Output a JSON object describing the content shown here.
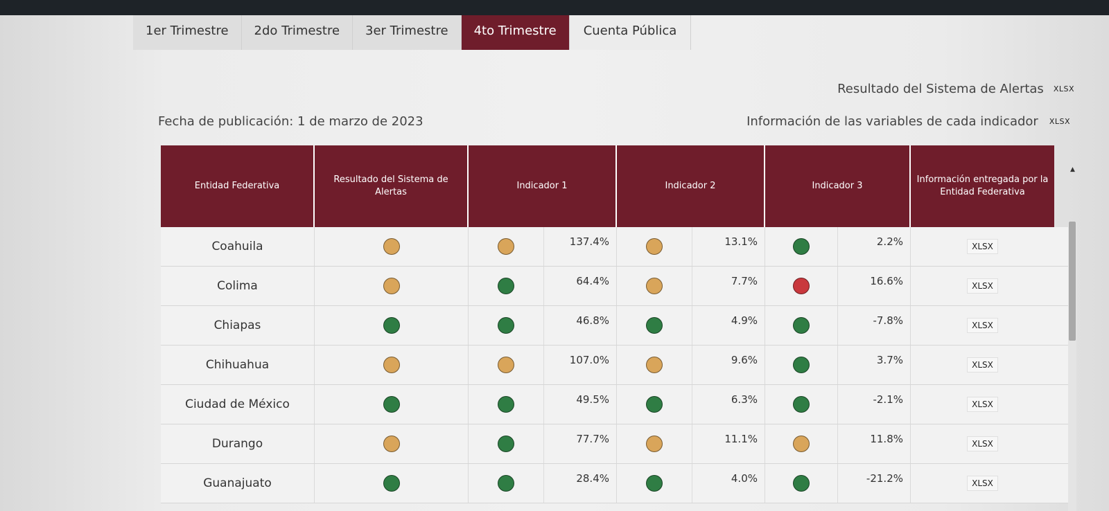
{
  "tabs": [
    {
      "label": "1er Trimestre",
      "active": false
    },
    {
      "label": "2do Trimestre",
      "active": false
    },
    {
      "label": "3er Trimestre",
      "active": false
    },
    {
      "label": "4to Trimestre",
      "active": true
    },
    {
      "label": "Cuenta Pública",
      "active": false
    }
  ],
  "links": {
    "alertas_label": "Resultado del Sistema de Alertas",
    "alertas_format": "XLSX",
    "variables_label": "Información de las variables de cada indicador",
    "variables_format": "XLSX"
  },
  "fecha": "Fecha de publicación: 1 de marzo de 2023",
  "table": {
    "headers": {
      "entidad": "Entidad Federativa",
      "resultado": "Resultado del Sistema de Alertas",
      "ind1": "Indicador 1",
      "ind2": "Indicador 2",
      "ind3": "Indicador 3",
      "info": "Información entregada por la Entidad Federativa"
    },
    "status_colors": {
      "amarillo": "#d9a55a",
      "verde": "#2f7d44",
      "rojo": "#c9383d"
    },
    "rows": [
      {
        "entidad": "Coahuila",
        "resultado": "amarillo",
        "i1": "amarillo",
        "v1": "137.4%",
        "i2": "amarillo",
        "v2": "13.1%",
        "i3": "verde",
        "v3": "2.2%",
        "info": "XLSX"
      },
      {
        "entidad": "Colima",
        "resultado": "amarillo",
        "i1": "verde",
        "v1": "64.4%",
        "i2": "amarillo",
        "v2": "7.7%",
        "i3": "rojo",
        "v3": "16.6%",
        "info": "XLSX"
      },
      {
        "entidad": "Chiapas",
        "resultado": "verde",
        "i1": "verde",
        "v1": "46.8%",
        "i2": "verde",
        "v2": "4.9%",
        "i3": "verde",
        "v3": "-7.8%",
        "info": "XLSX"
      },
      {
        "entidad": "Chihuahua",
        "resultado": "amarillo",
        "i1": "amarillo",
        "v1": "107.0%",
        "i2": "amarillo",
        "v2": "9.6%",
        "i3": "verde",
        "v3": "3.7%",
        "info": "XLSX"
      },
      {
        "entidad": "Ciudad de México",
        "resultado": "verde",
        "i1": "verde",
        "v1": "49.5%",
        "i2": "verde",
        "v2": "6.3%",
        "i3": "verde",
        "v3": "-2.1%",
        "info": "XLSX"
      },
      {
        "entidad": "Durango",
        "resultado": "amarillo",
        "i1": "verde",
        "v1": "77.7%",
        "i2": "amarillo",
        "v2": "11.1%",
        "i3": "amarillo",
        "v3": "11.8%",
        "info": "XLSX"
      },
      {
        "entidad": "Guanajuato",
        "resultado": "verde",
        "i1": "verde",
        "v1": "28.4%",
        "i2": "verde",
        "v2": "4.0%",
        "i3": "verde",
        "v3": "-21.2%",
        "info": "XLSX"
      }
    ]
  }
}
